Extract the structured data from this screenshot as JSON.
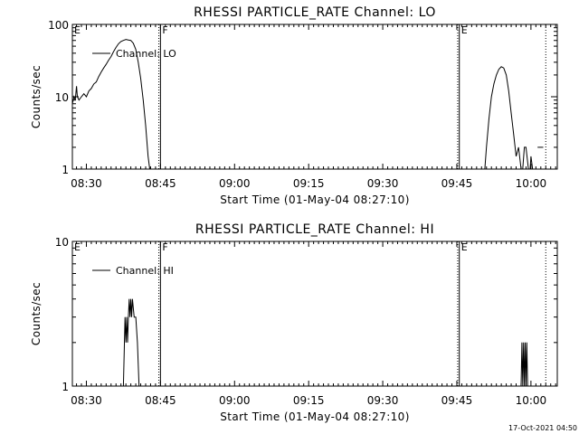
{
  "timestamp": "17-Oct-2021 04:50",
  "chart_data": [
    {
      "type": "line",
      "title": "RHESSI PARTICLE_RATE Channel: LO",
      "xlabel": "Start Time (01-May-04 08:27:10)",
      "ylabel": "Counts/sec",
      "x_ticks": [
        "08:30",
        "08:45",
        "09:00",
        "09:15",
        "09:30",
        "09:45",
        "10:00"
      ],
      "xlim": [
        "08:27:10",
        "10:05:20"
      ],
      "y_scale": "log",
      "ylim": [
        1,
        100
      ],
      "y_ticks": [
        "1",
        "10",
        "100"
      ],
      "legend": {
        "label": "Channel: LO",
        "placement": "top-left"
      },
      "markers": [
        {
          "label": "E",
          "time": "08:27:10",
          "style": "none"
        },
        {
          "label": "F",
          "time": "08:45:00",
          "style": "solid"
        },
        {
          "label": "E",
          "time": "09:45:30",
          "style": "solid"
        }
      ],
      "dotted_lines": [
        "08:44:40",
        "09:45:10",
        "10:03:00"
      ],
      "series": [
        {
          "segments": [
            [
              [
                "08:27:10",
                8
              ],
              [
                "08:27:30",
                10
              ],
              [
                "08:27:45",
                9
              ],
              [
                "08:28:00",
                14
              ],
              [
                "08:28:10",
                10
              ],
              [
                "08:28:30",
                9
              ],
              [
                "08:29:00",
                10
              ],
              [
                "08:29:30",
                11
              ],
              [
                "08:30:00",
                10
              ],
              [
                "08:30:30",
                12
              ],
              [
                "08:31:00",
                13
              ],
              [
                "08:31:30",
                15
              ],
              [
                "08:32:00",
                16
              ],
              [
                "08:32:30",
                19
              ],
              [
                "08:33:00",
                22
              ],
              [
                "08:33:30",
                25
              ],
              [
                "08:34:00",
                28
              ],
              [
                "08:34:30",
                32
              ],
              [
                "08:35:00",
                36
              ],
              [
                "08:35:30",
                42
              ],
              [
                "08:36:00",
                48
              ],
              [
                "08:36:30",
                54
              ],
              [
                "08:37:00",
                58
              ],
              [
                "08:37:30",
                60
              ],
              [
                "08:38:00",
                62
              ],
              [
                "08:38:30",
                61
              ],
              [
                "08:39:00",
                60
              ],
              [
                "08:39:30",
                55
              ],
              [
                "08:40:00",
                45
              ],
              [
                "08:40:30",
                30
              ],
              [
                "08:41:00",
                18
              ],
              [
                "08:41:30",
                9
              ],
              [
                "08:42:00",
                4
              ],
              [
                "08:42:30",
                1.5
              ],
              [
                "08:42:50",
                1
              ]
            ],
            [
              [
                "09:50:40",
                1
              ],
              [
                "09:51:00",
                2
              ],
              [
                "09:51:30",
                5
              ],
              [
                "09:52:00",
                10
              ],
              [
                "09:52:30",
                15
              ],
              [
                "09:53:00",
                20
              ],
              [
                "09:53:30",
                24
              ],
              [
                "09:54:00",
                26
              ],
              [
                "09:54:30",
                25
              ],
              [
                "09:55:00",
                20
              ],
              [
                "09:55:30",
                12
              ],
              [
                "09:56:00",
                6
              ],
              [
                "09:56:30",
                3
              ],
              [
                "09:57:00",
                1.5
              ],
              [
                "09:57:30",
                2
              ],
              [
                "09:58:00",
                1
              ],
              [
                "09:58:20",
                1
              ],
              [
                "09:58:40",
                2
              ],
              [
                "09:59:00",
                2
              ],
              [
                "09:59:30",
                1
              ],
              [
                "09:59:50",
                1
              ],
              [
                "10:00:00",
                1.5
              ],
              [
                "10:00:20",
                1
              ]
            ],
            [
              [
                "10:01:20",
                2
              ],
              [
                "10:02:30",
                2
              ]
            ]
          ]
        }
      ]
    },
    {
      "type": "line",
      "title": "RHESSI PARTICLE_RATE Channel: HI",
      "xlabel": "Start Time (01-May-04 08:27:10)",
      "ylabel": "Counts/sec",
      "x_ticks": [
        "08:30",
        "08:45",
        "09:00",
        "09:15",
        "09:30",
        "09:45",
        "10:00"
      ],
      "xlim": [
        "08:27:10",
        "10:05:20"
      ],
      "y_scale": "log",
      "ylim": [
        1,
        10
      ],
      "y_ticks": [
        "1",
        "10"
      ],
      "legend": {
        "label": "Channel: HI",
        "placement": "top-left"
      },
      "markers": [
        {
          "label": "E",
          "time": "08:27:10",
          "style": "none"
        },
        {
          "label": "F",
          "time": "08:45:00",
          "style": "solid"
        },
        {
          "label": "E",
          "time": "09:45:30",
          "style": "solid"
        }
      ],
      "dotted_lines": [
        "08:44:40",
        "09:45:10",
        "10:03:00"
      ],
      "series": [
        {
          "segments": [
            [
              [
                "08:37:30",
                1
              ],
              [
                "08:37:50",
                3
              ],
              [
                "08:38:00",
                2
              ],
              [
                "08:38:10",
                3
              ],
              [
                "08:38:20",
                2
              ],
              [
                "08:38:30",
                3
              ],
              [
                "08:38:40",
                4
              ],
              [
                "08:38:50",
                3
              ],
              [
                "08:39:00",
                4
              ],
              [
                "08:39:10",
                3
              ],
              [
                "08:39:20",
                4
              ],
              [
                "08:39:40",
                3
              ],
              [
                "08:40:00",
                3
              ],
              [
                "08:40:20",
                2
              ],
              [
                "08:40:40",
                1
              ]
            ],
            [
              [
                "09:58:00",
                1
              ],
              [
                "09:58:10",
                2
              ],
              [
                "09:58:20",
                1
              ],
              [
                "09:58:30",
                2
              ],
              [
                "09:58:40",
                1
              ],
              [
                "09:58:50",
                2
              ],
              [
                "09:59:00",
                1
              ],
              [
                "09:59:10",
                2
              ],
              [
                "09:59:20",
                1
              ]
            ]
          ]
        }
      ]
    }
  ]
}
